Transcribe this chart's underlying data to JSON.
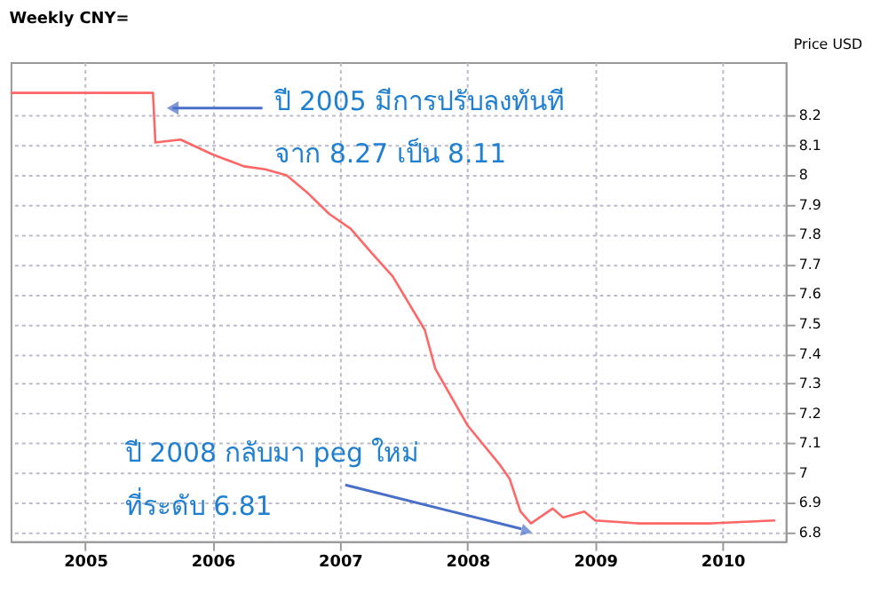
{
  "chart_data": {
    "type": "line",
    "title": "Weekly CNY=",
    "ylabel": "Price USD",
    "x": [
      "2004-06",
      "2005-07-14",
      "2005-07-21",
      "2005-10",
      "2006-01",
      "2006-04",
      "2006-06",
      "2006-08",
      "2006-10",
      "2006-12",
      "2007-02",
      "2007-04",
      "2007-06",
      "2007-09",
      "2007-10",
      "2008-01",
      "2008-04",
      "2008-05",
      "2008-06",
      "2008-07",
      "2008-09",
      "2008-10",
      "2008-12",
      "2009-01",
      "2009-05",
      "2009-08",
      "2009-12",
      "2010-06"
    ],
    "series": [
      {
        "color": "#ff6666",
        "values": [
          8.277,
          8.277,
          8.11,
          8.12,
          8.07,
          8.03,
          8.02,
          8.0,
          7.94,
          7.87,
          7.82,
          7.74,
          7.66,
          7.48,
          7.35,
          7.16,
          7.03,
          6.98,
          6.87,
          6.83,
          6.88,
          6.85,
          6.87,
          6.84,
          6.83,
          6.83,
          6.83,
          6.84
        ]
      }
    ],
    "xlim": [
      "2004-06",
      "2010-07"
    ],
    "xticks": [
      "2005",
      "2006",
      "2007",
      "2008",
      "2009",
      "2010"
    ],
    "ylim": [
      6.77,
      8.38
    ],
    "yticks": [
      6.8,
      6.9,
      7.0,
      7.1,
      7.2,
      7.3,
      7.4,
      7.5,
      7.6,
      7.7,
      7.8,
      7.9,
      8.0,
      8.1,
      8.2
    ],
    "grid": true,
    "line_style": "solid",
    "marker": "none",
    "annotations": [
      "ปี 2005 มีการปรับลงทันที",
      "จาก 8.27 เป็น 8.11",
      "ปี 2008 กลับมา peg ใหม่",
      "ที่ระดับ 6.81"
    ]
  }
}
